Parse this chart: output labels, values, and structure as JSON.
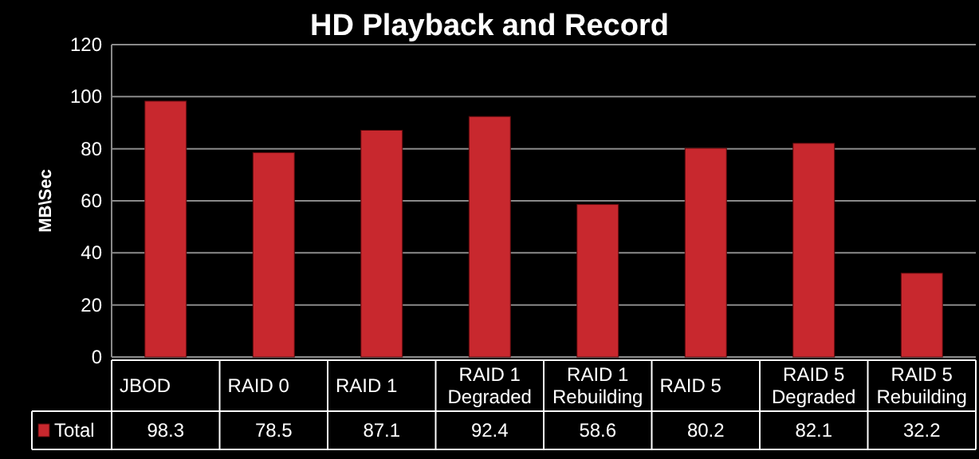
{
  "chart_data": {
    "type": "bar",
    "title": "HD Playback and Record",
    "ylabel": "MB\\Sec",
    "categories": [
      "JBOD",
      "RAID 0",
      "RAID 1",
      "RAID 1 Degraded",
      "RAID 1 Rebuilding",
      "RAID 5",
      "RAID 5 Degraded",
      "RAID 5 Rebuilding"
    ],
    "series": [
      {
        "name": "Total",
        "color": "#c8282e",
        "values": [
          98.3,
          78.5,
          87.1,
          92.4,
          58.6,
          80.2,
          82.1,
          32.2
        ]
      }
    ],
    "ylim": [
      0,
      120
    ],
    "yticks": [
      0,
      20,
      40,
      60,
      80,
      100,
      120
    ],
    "grid": "y",
    "data_labels": true,
    "legend": "bottom left"
  }
}
